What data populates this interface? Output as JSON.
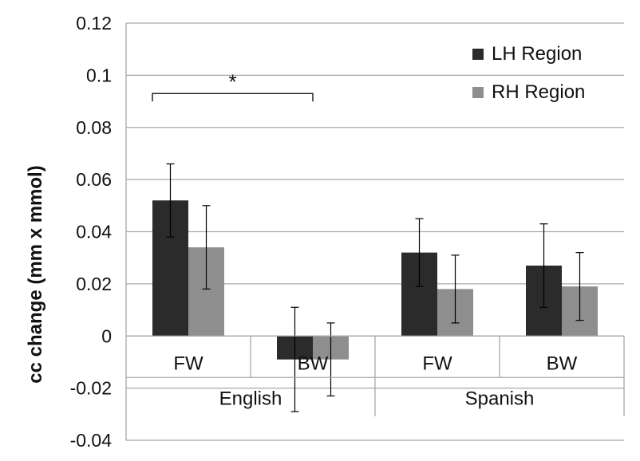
{
  "chart_data": {
    "type": "bar",
    "title": "",
    "ylabel": "cc change (mm x mmol)",
    "xlabel": "",
    "ylim": [
      -0.04,
      0.12
    ],
    "yticks": [
      0.12,
      0.1,
      0.08,
      0.06,
      0.04,
      0.02,
      0,
      -0.02,
      -0.04
    ],
    "ytick_labels": [
      "0.12",
      "0.1",
      "0.08",
      "0.06",
      "0.04",
      "0.02",
      "0",
      "-0.02",
      "-0.04"
    ],
    "grid": "horizontal",
    "legend_position": "top-right",
    "groups": [
      {
        "label": "English",
        "categories": [
          "FW",
          "BW"
        ]
      },
      {
        "label": "Spanish",
        "categories": [
          "FW",
          "BW"
        ]
      }
    ],
    "categories": [
      "FW",
      "BW",
      "FW",
      "BW"
    ],
    "series": [
      {
        "name": "LH Region",
        "color": "#2b2b2b",
        "values": [
          0.052,
          -0.009,
          0.032,
          0.027
        ],
        "errors": [
          0.014,
          0.02,
          0.013,
          0.016
        ]
      },
      {
        "name": "RH Region",
        "color": "#8e8e8e",
        "values": [
          0.034,
          -0.009,
          0.018,
          0.019
        ],
        "errors": [
          0.016,
          0.014,
          0.013,
          0.013
        ]
      }
    ],
    "annotation": {
      "text": "*",
      "between_categories": [
        0,
        1
      ],
      "y": 0.093
    }
  }
}
